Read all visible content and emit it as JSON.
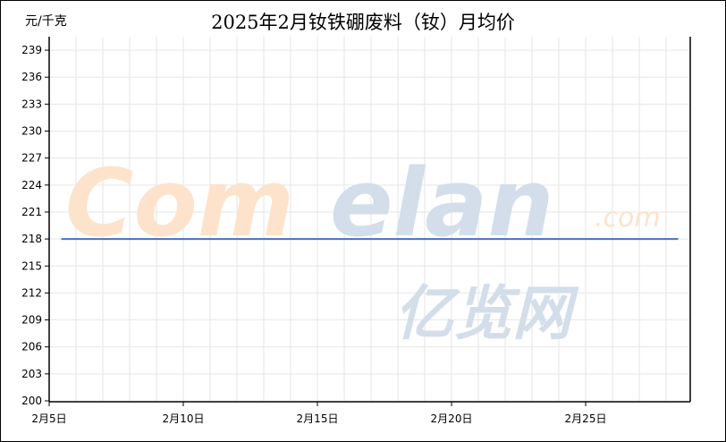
{
  "chart_data": {
    "type": "line",
    "title": "2025年2月钕铁硼废料（钕）月均价",
    "ylabel": "元/千克",
    "xlabel": "",
    "ylim": [
      200,
      240.5
    ],
    "yticks": [
      200,
      203,
      206,
      209,
      212,
      215,
      218,
      221,
      224,
      227,
      230,
      233,
      236,
      239
    ],
    "xlim": [
      "2025-02-05",
      "2025-02-28"
    ],
    "xticks": [
      {
        "date": "2025-02-05",
        "label": "2月5日"
      },
      {
        "date": "2025-02-10",
        "label": "2月10日"
      },
      {
        "date": "2025-02-15",
        "label": "2月15日"
      },
      {
        "date": "2025-02-20",
        "label": "2月20日"
      },
      {
        "date": "2025-02-25",
        "label": "2月25日"
      }
    ],
    "grid": true,
    "series": [
      {
        "color": "#4472C4",
        "x": [
          "2025-02-05",
          "2025-02-28"
        ],
        "y": [
          218,
          218
        ]
      }
    ]
  },
  "watermark": {
    "brand": "Comelan",
    "domain": ".com",
    "cn": "亿览网"
  }
}
